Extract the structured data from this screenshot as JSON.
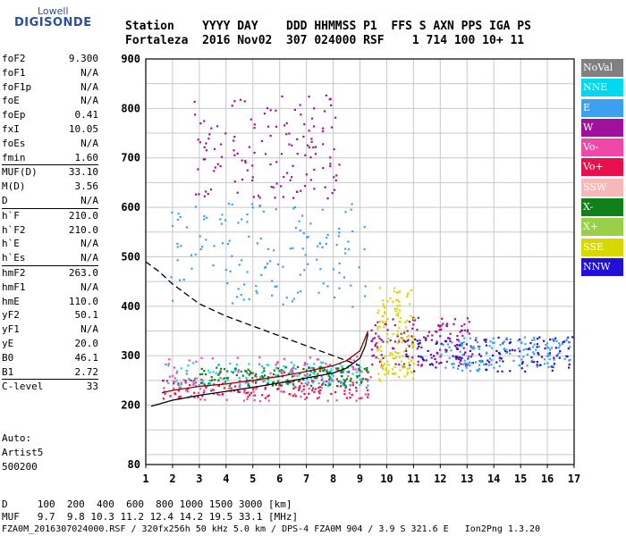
{
  "logo": {
    "line1": "Lowell",
    "line2": "DIGISONDE"
  },
  "header": {
    "line1": "Station    YYYY DAY    DDD HHMMSS P1  FFS S AXN PPS IGA PS",
    "line2": "Fortaleza  2016 Nov02  307 024000 RSF    1 714 100 10+ 11"
  },
  "params": [
    {
      "label": "foF2",
      "value": "9.300",
      "sep": false
    },
    {
      "label": "foF1",
      "value": "N/A",
      "sep": false
    },
    {
      "label": "foF1p",
      "value": "N/A",
      "sep": false
    },
    {
      "label": "foE",
      "value": "N/A",
      "sep": false
    },
    {
      "label": "foEp",
      "value": "0.41",
      "sep": false
    },
    {
      "label": "fxI",
      "value": "10.05",
      "sep": false
    },
    {
      "label": "foEs",
      "value": "N/A",
      "sep": false
    },
    {
      "label": "fmin",
      "value": "1.60",
      "sep": false
    },
    {
      "label": "MUF(D)",
      "value": "33.10",
      "sep": true
    },
    {
      "label": "M(D)",
      "value": "3.56",
      "sep": false
    },
    {
      "label": "D",
      "value": "N/A",
      "sep": false
    },
    {
      "label": "h`F",
      "value": "210.0",
      "sep": true
    },
    {
      "label": "h`F2",
      "value": "210.0",
      "sep": false
    },
    {
      "label": "h`E",
      "value": "N/A",
      "sep": false
    },
    {
      "label": "h`Es",
      "value": "N/A",
      "sep": false
    },
    {
      "label": "hmF2",
      "value": "263.0",
      "sep": true
    },
    {
      "label": "hmF1",
      "value": "N/A",
      "sep": false
    },
    {
      "label": "hmE",
      "value": "110.0",
      "sep": false
    },
    {
      "label": "yF2",
      "value": "50.1",
      "sep": false
    },
    {
      "label": "yF1",
      "value": "N/A",
      "sep": false
    },
    {
      "label": "yE",
      "value": "20.0",
      "sep": false
    },
    {
      "label": "B0",
      "value": "46.1",
      "sep": false
    },
    {
      "label": "B1",
      "value": "2.72",
      "sep": false
    },
    {
      "label": "C-level",
      "value": "33",
      "sep": true
    }
  ],
  "auto": {
    "line1": "Auto:",
    "line2": "Artist5",
    "line3": "500200"
  },
  "legend": [
    {
      "label": "NoVal",
      "color": "#808080"
    },
    {
      "label": "NNE",
      "color": "#00d8f0"
    },
    {
      "label": "E",
      "color": "#3ca0f0"
    },
    {
      "label": "W",
      "color": "#a0109c"
    },
    {
      "label": "Vo-",
      "color": "#f048a8"
    },
    {
      "label": "Vo+",
      "color": "#e8104c"
    },
    {
      "label": "SSW",
      "color": "#f8b8b8"
    },
    {
      "label": "X-",
      "color": "#108018"
    },
    {
      "label": "X+",
      "color": "#98d048"
    },
    {
      "label": "SSE",
      "color": "#d8d800"
    },
    {
      "label": "NNW",
      "color": "#2010d8"
    }
  ],
  "bottom": {
    "d_line": "D     100  200  400  600  800 1000 1500 3000 [km]",
    "muf_line": "MUF   9.7  9.8 10.3 11.2 12.4 14.2 19.5 33.1 [MHz]",
    "footer_line": "FZA0M_2016307024000.RSF / 320fx256h 50 kHz 5.0 km / DPS-4 FZA0M 904 / 3.9 S 321.6 E   Ion2Png 1.3.20"
  },
  "chart_data": {
    "type": "scatter",
    "title": "",
    "xlabel": "",
    "ylabel": "",
    "xlim": [
      1,
      17
    ],
    "ylim": [
      80,
      900
    ],
    "x_ticks": [
      1,
      2,
      3,
      4,
      5,
      6,
      7,
      8,
      9,
      10,
      11,
      12,
      13,
      14,
      15,
      16,
      17
    ],
    "y_ticks": [
      80,
      200,
      300,
      400,
      500,
      600,
      700,
      800,
      900
    ],
    "grid": true,
    "legend_position": "right",
    "trace_clusters": [
      {
        "color": "#e8104c",
        "x_range": [
          1.6,
          9.3
        ],
        "y_range": [
          215,
          255
        ]
      },
      {
        "color": "#00d8f0",
        "x_range": [
          1.8,
          9.3
        ],
        "y_range": [
          240,
          290
        ]
      },
      {
        "color": "#f048a8",
        "x_range": [
          1.6,
          9.4
        ],
        "y_range": [
          210,
          300
        ]
      },
      {
        "color": "#a0109c",
        "x_range": [
          9.4,
          13.2
        ],
        "y_range": [
          280,
          380
        ]
      },
      {
        "color": "#2010d8",
        "x_range": [
          10.5,
          16.9
        ],
        "y_range": [
          270,
          340
        ]
      },
      {
        "color": "#3ca0f0",
        "x_range": [
          12.0,
          16.9
        ],
        "y_range": [
          270,
          340
        ]
      },
      {
        "color": "#108018",
        "x_range": [
          3.0,
          9.3
        ],
        "y_range": [
          240,
          280
        ]
      },
      {
        "color": "#d8d800",
        "x_range": [
          9.6,
          11.0
        ],
        "y_range": [
          250,
          440
        ]
      },
      {
        "color": "#3ca0f0",
        "x_range": [
          1.9,
          9.2
        ],
        "y_range": [
          400,
          610
        ]
      },
      {
        "color": "#a0109c",
        "x_range": [
          2.7,
          8.2
        ],
        "y_range": [
          620,
          830
        ]
      }
    ],
    "profile_curve": {
      "x": [
        1.2,
        2,
        3,
        4,
        5,
        6,
        7,
        8,
        8.5,
        9,
        9.2,
        9.3
      ],
      "y": [
        198,
        210,
        220,
        228,
        236,
        245,
        255,
        265,
        275,
        295,
        320,
        345
      ],
      "color": "#000000"
    },
    "trace_curve": {
      "x": [
        1.6,
        2,
        3,
        4,
        5,
        6,
        7,
        8,
        8.5,
        9,
        9.3
      ],
      "y": [
        225,
        230,
        238,
        243,
        250,
        258,
        268,
        280,
        290,
        310,
        350
      ],
      "color": "#8b0000"
    },
    "muf_dashed": {
      "x": [
        1.0,
        1.5,
        2,
        3,
        4,
        5,
        6,
        7,
        8,
        8.5,
        9
      ],
      "y": [
        490,
        470,
        445,
        405,
        380,
        360,
        340,
        320,
        300,
        290,
        280
      ],
      "color": "#000000"
    }
  }
}
